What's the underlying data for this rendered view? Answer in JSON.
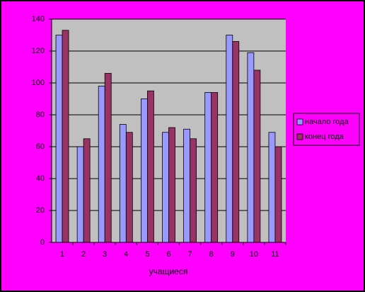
{
  "chart_data": {
    "type": "bar",
    "x_label": "учащиеся",
    "categories": [
      "1",
      "2",
      "3",
      "4",
      "5",
      "6",
      "7",
      "8",
      "9",
      "10",
      "11"
    ],
    "series": [
      {
        "name": "начало года",
        "color": "#9999ff",
        "values": [
          130,
          60,
          98,
          74,
          90,
          69,
          71,
          94,
          130,
          119,
          69
        ]
      },
      {
        "name": "конец года",
        "color": "#993366",
        "values": [
          133,
          65,
          106,
          69,
          95,
          72,
          65,
          94,
          126,
          108,
          60
        ]
      }
    ],
    "ylim": [
      0,
      140
    ],
    "yticks": [
      0,
      20,
      40,
      60,
      80,
      100,
      120,
      140
    ],
    "grid": true,
    "legend": "right"
  }
}
